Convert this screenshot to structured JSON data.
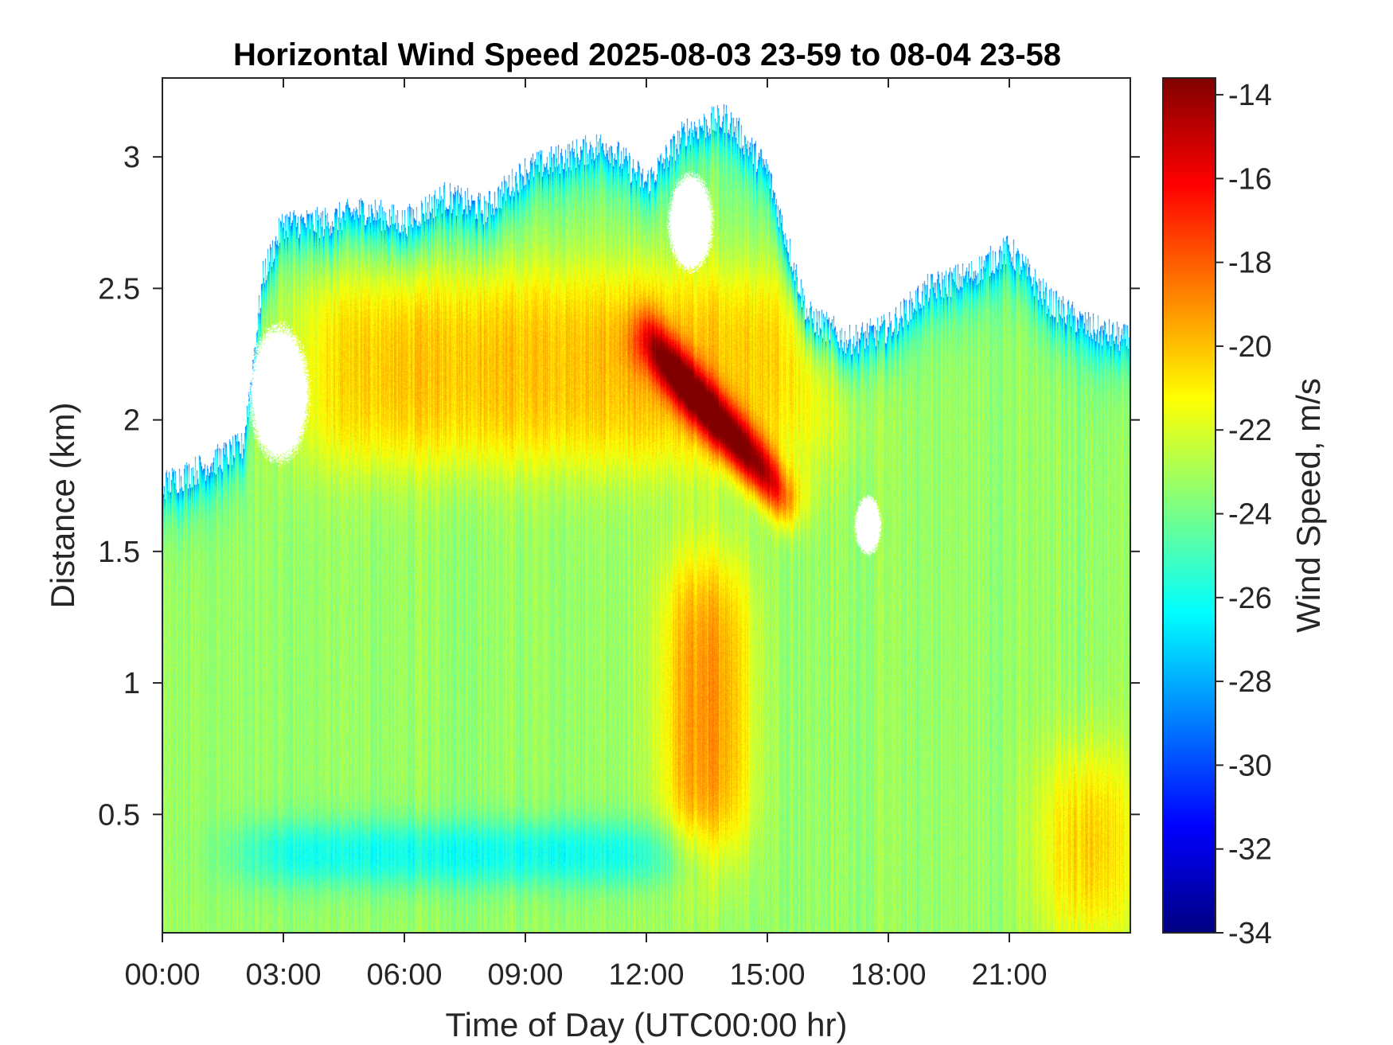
{
  "chart_data": {
    "type": "heatmap",
    "title": "Horizontal Wind Speed 2025-08-03 23-59 to 08-04 23-58",
    "xlabel": "Time of Day (UTC00:00 hr)",
    "ylabel": "Distance (km)",
    "colorbar_label": "Wind Speed, m/s",
    "x_unit": "hours",
    "xlim": [
      0,
      24
    ],
    "ylim": [
      0.05,
      3.3
    ],
    "clim": [
      -34,
      -13.6
    ],
    "colormap": "jet",
    "x_ticks": [
      0,
      3,
      6,
      9,
      12,
      15,
      18,
      21
    ],
    "x_tick_labels": [
      "00:00",
      "03:00",
      "06:00",
      "09:00",
      "12:00",
      "15:00",
      "18:00",
      "21:00"
    ],
    "y_ticks": [
      0.5,
      1,
      1.5,
      2,
      2.5,
      3
    ],
    "y_tick_labels": [
      "0.5",
      "1",
      "1.5",
      "2",
      "2.5",
      "3"
    ],
    "colorbar_ticks": [
      -14,
      -16,
      -18,
      -20,
      -22,
      -24,
      -26,
      -28,
      -30,
      -32,
      -34
    ],
    "colorbar_tick_labels": [
      "-14",
      "-16",
      "-18",
      "-20",
      "-22",
      "-24",
      "-26",
      "-28",
      "-30",
      "-32",
      "-34"
    ],
    "data_top_km": [
      [
        0,
        1.75
      ],
      [
        1,
        1.82
      ],
      [
        2,
        1.9
      ],
      [
        2.5,
        2.55
      ],
      [
        3,
        2.75
      ],
      [
        4,
        2.75
      ],
      [
        5,
        2.8
      ],
      [
        6,
        2.75
      ],
      [
        7,
        2.85
      ],
      [
        8,
        2.8
      ],
      [
        9,
        2.95
      ],
      [
        10,
        3.0
      ],
      [
        11,
        3.05
      ],
      [
        12,
        2.9
      ],
      [
        13,
        3.1
      ],
      [
        14,
        3.15
      ],
      [
        15,
        2.95
      ],
      [
        16,
        2.4
      ],
      [
        17,
        2.3
      ],
      [
        18,
        2.35
      ],
      [
        19,
        2.5
      ],
      [
        20,
        2.55
      ],
      [
        21,
        2.65
      ],
      [
        22,
        2.45
      ],
      [
        23,
        2.35
      ],
      [
        24,
        2.3
      ]
    ],
    "gaps": [
      {
        "t_center": 2.9,
        "t_half_width": 0.8,
        "d_center": 2.1,
        "d_half_height": 0.28
      },
      {
        "t_center": 13.1,
        "t_half_width": 0.6,
        "d_center": 2.75,
        "d_half_height": 0.2
      },
      {
        "t_center": 17.5,
        "t_half_width": 0.35,
        "d_center": 1.6,
        "d_half_height": 0.12
      }
    ],
    "features": [
      {
        "name": "background",
        "speed": -23.3
      },
      {
        "name": "upper orange band",
        "speed": -20.0,
        "t_range": [
          3.5,
          16.5
        ],
        "d_range": [
          1.85,
          2.55
        ]
      },
      {
        "name": "max jet core",
        "speed": -14.5,
        "t_start": 12.0,
        "d_start": 2.3,
        "t_end": 15.5,
        "d_end": 1.7
      },
      {
        "name": "low-level maximum",
        "speed": -19.0,
        "t_range": [
          12.5,
          14.5
        ],
        "d_range": [
          0.35,
          1.45
        ]
      },
      {
        "name": "surface maximum late day",
        "speed": -19.5,
        "t_range": [
          22.0,
          24.0
        ],
        "d_range": [
          0.05,
          0.7
        ]
      },
      {
        "name": "cyan layer near surface",
        "speed": -26.5,
        "t_range": [
          2.0,
          13.0
        ],
        "d_range": [
          0.25,
          0.45
        ]
      },
      {
        "name": "blue cloud edge",
        "speed": -29.0,
        "along": "data_top"
      }
    ]
  }
}
